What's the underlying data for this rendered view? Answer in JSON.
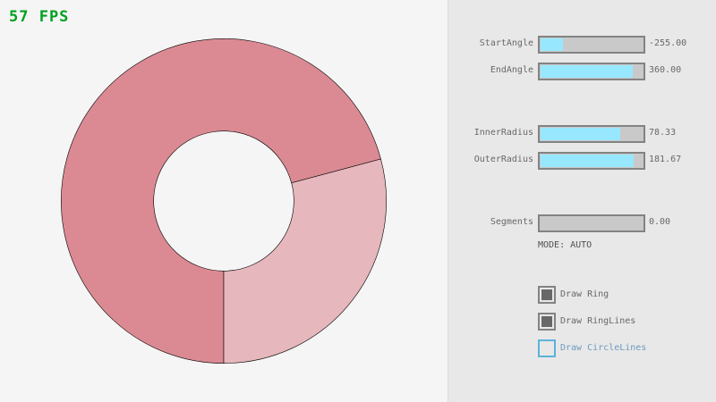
{
  "fps": "57 FPS",
  "ring": {
    "start_angle": -255,
    "end_angle": 360,
    "inner_radius": 78.33,
    "outer_radius": 181.67,
    "overlap_color": "#db8a93",
    "single_color": "#e6b7bc",
    "line_color": "#000000"
  },
  "sliders": [
    {
      "label": "StartAngle",
      "value_text": "-255.00",
      "value": -255,
      "min": -450,
      "max": 450
    },
    {
      "label": "EndAngle",
      "value_text": "360.00",
      "value": 360,
      "min": -450,
      "max": 450
    },
    {
      "label": "InnerRadius",
      "value_text": "78.33",
      "value": 78.33,
      "min": 0,
      "max": 100
    },
    {
      "label": "OuterRadius",
      "value_text": "181.67",
      "value": 181.67,
      "min": 0,
      "max": 200
    },
    {
      "label": "Segments",
      "value_text": "0.00",
      "value": 0,
      "min": 0,
      "max": 100
    }
  ],
  "mode": "MODE: AUTO",
  "checkboxes": [
    {
      "label": "Draw Ring",
      "checked": true
    },
    {
      "label": "Draw RingLines",
      "checked": true
    },
    {
      "label": "Draw CircleLines",
      "checked": false
    }
  ]
}
